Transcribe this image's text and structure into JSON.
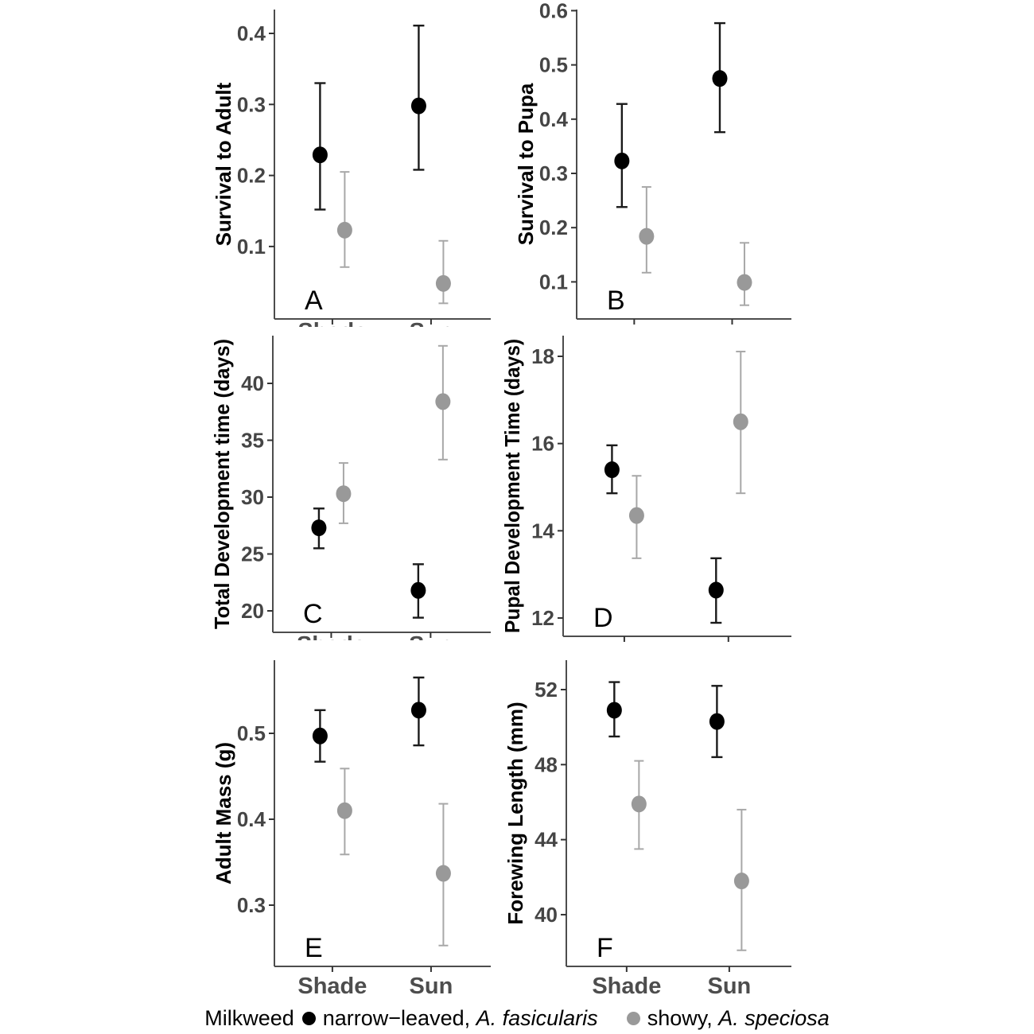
{
  "colors": {
    "black_series": "#000000",
    "black_errorbar": "#1a1a1a",
    "gray_series": "#999999",
    "gray_errorbar": "#a8a8a8",
    "axis": "#4d4d4d",
    "tick_label": "#454545",
    "panel_letter": "#000000"
  },
  "x_categories": [
    "Shade",
    "Sun"
  ],
  "legend": {
    "title": "Milkweed",
    "items": [
      {
        "marker_color": "#000000",
        "prefix": "narrow−leaved, ",
        "species": "A. fasicularis"
      },
      {
        "marker_color": "#999999",
        "prefix": "showy, ",
        "species": "A. speciosa"
      }
    ]
  },
  "chart_data": [
    {
      "id": "A",
      "letter": "A",
      "type": "scatter",
      "ylabel": "Survival to Adult",
      "categories": [
        "Shade",
        "Sun"
      ],
      "ytick_labels": [
        "0.1",
        "0.2",
        "0.3",
        "0.4"
      ],
      "ytick_values": [
        0.1,
        0.2,
        0.3,
        0.4
      ],
      "ylim": [
        0.0,
        0.43
      ],
      "x_label_style": "clipped",
      "series": [
        {
          "name": "narrow-leaved, A. fasicularis",
          "color": "black",
          "points": [
            {
              "x": "Shade",
              "y": 0.229,
              "lo": 0.152,
              "hi": 0.33
            },
            {
              "x": "Sun",
              "y": 0.298,
              "lo": 0.208,
              "hi": 0.411
            }
          ]
        },
        {
          "name": "showy, A. speciosa",
          "color": "gray",
          "points": [
            {
              "x": "Shade",
              "y": 0.123,
              "lo": 0.071,
              "hi": 0.205
            },
            {
              "x": "Sun",
              "y": 0.048,
              "lo": 0.02,
              "hi": 0.108
            }
          ]
        }
      ]
    },
    {
      "id": "B",
      "letter": "B",
      "type": "scatter",
      "ylabel": "Survival to Pupa",
      "categories": [
        "Shade",
        "Sun"
      ],
      "ytick_labels": [
        "0.1",
        "0.2",
        "0.3",
        "0.4",
        "0.5",
        "0.6"
      ],
      "ytick_values": [
        0.1,
        0.2,
        0.3,
        0.4,
        0.5,
        0.6
      ],
      "ylim": [
        0.01,
        0.62
      ],
      "x_label_style": "none",
      "series": [
        {
          "name": "narrow-leaved, A. fasicularis",
          "color": "black",
          "points": [
            {
              "x": "Shade",
              "y": 0.323,
              "lo": 0.238,
              "hi": 0.428
            },
            {
              "x": "Sun",
              "y": 0.475,
              "lo": 0.376,
              "hi": 0.577
            }
          ]
        },
        {
          "name": "showy, A. speciosa",
          "color": "gray",
          "points": [
            {
              "x": "Shade",
              "y": 0.184,
              "lo": 0.117,
              "hi": 0.275
            },
            {
              "x": "Sun",
              "y": 0.099,
              "lo": 0.057,
              "hi": 0.172
            }
          ]
        }
      ]
    },
    {
      "id": "C",
      "letter": "C",
      "type": "scatter",
      "ylabel": "Total Development time (days)",
      "categories": [
        "Shade",
        "Sun"
      ],
      "ytick_labels": [
        "20",
        "25",
        "30",
        "35",
        "40"
      ],
      "ytick_values": [
        20,
        25,
        30,
        35,
        40
      ],
      "ylim": [
        17.9,
        44.2
      ],
      "x_label_style": "clipped",
      "series": [
        {
          "name": "narrow-leaved, A. fasicularis",
          "color": "black",
          "points": [
            {
              "x": "Shade",
              "y": 27.3,
              "lo": 25.5,
              "hi": 29.0
            },
            {
              "x": "Sun",
              "y": 21.8,
              "lo": 19.4,
              "hi": 24.1
            }
          ]
        },
        {
          "name": "showy, A. speciosa",
          "color": "gray",
          "points": [
            {
              "x": "Shade",
              "y": 30.3,
              "lo": 27.7,
              "hi": 33.0
            },
            {
              "x": "Sun",
              "y": 38.4,
              "lo": 33.3,
              "hi": 43.3
            }
          ]
        }
      ]
    },
    {
      "id": "D",
      "letter": "D",
      "type": "scatter",
      "ylabel": "Pupal Development Time (days)",
      "categories": [
        "Shade",
        "Sun"
      ],
      "ytick_labels": [
        "12",
        "14",
        "16",
        "18"
      ],
      "ytick_values": [
        12,
        14,
        16,
        18
      ],
      "ylim": [
        11.6,
        18.5
      ],
      "x_label_style": "none",
      "series": [
        {
          "name": "narrow-leaved, A. fasicularis",
          "color": "black",
          "points": [
            {
              "x": "Shade",
              "y": 15.4,
              "lo": 14.86,
              "hi": 15.96
            },
            {
              "x": "Sun",
              "y": 12.64,
              "lo": 11.89,
              "hi": 13.37
            }
          ]
        },
        {
          "name": "showy, A. speciosa",
          "color": "gray",
          "points": [
            {
              "x": "Shade",
              "y": 14.35,
              "lo": 13.37,
              "hi": 15.26
            },
            {
              "x": "Sun",
              "y": 16.5,
              "lo": 14.86,
              "hi": 18.11
            }
          ]
        }
      ]
    },
    {
      "id": "E",
      "letter": "E",
      "type": "scatter",
      "ylabel": "Adult Mass (g)",
      "categories": [
        "Shade",
        "Sun"
      ],
      "ytick_labels": [
        "0.3",
        "0.4",
        "0.5"
      ],
      "ytick_values": [
        0.3,
        0.4,
        0.5
      ],
      "ylim": [
        0.23,
        0.59
      ],
      "x_label_style": "full",
      "series": [
        {
          "name": "narrow-leaved, A. fasicularis",
          "color": "black",
          "points": [
            {
              "x": "Shade",
              "y": 0.497,
              "lo": 0.467,
              "hi": 0.527
            },
            {
              "x": "Sun",
              "y": 0.527,
              "lo": 0.486,
              "hi": 0.565
            }
          ]
        },
        {
          "name": "showy, A. speciosa",
          "color": "gray",
          "points": [
            {
              "x": "Shade",
              "y": 0.41,
              "lo": 0.359,
              "hi": 0.459
            },
            {
              "x": "Sun",
              "y": 0.337,
              "lo": 0.253,
              "hi": 0.418
            }
          ]
        }
      ]
    },
    {
      "id": "F",
      "letter": "F",
      "type": "scatter",
      "ylabel": "Forewing Length (mm)",
      "categories": [
        "Shade",
        "Sun"
      ],
      "ytick_labels": [
        "40",
        "44",
        "48",
        "52"
      ],
      "ytick_values": [
        40,
        44,
        48,
        52
      ],
      "ylim": [
        37.3,
        53.6
      ],
      "x_label_style": "full",
      "series": [
        {
          "name": "narrow-leaved, A. fasicularis",
          "color": "black",
          "points": [
            {
              "x": "Shade",
              "y": 50.9,
              "lo": 49.5,
              "hi": 52.4
            },
            {
              "x": "Sun",
              "y": 50.3,
              "lo": 48.4,
              "hi": 52.2
            }
          ]
        },
        {
          "name": "showy, A. speciosa",
          "color": "gray",
          "points": [
            {
              "x": "Shade",
              "y": 45.9,
              "lo": 43.5,
              "hi": 48.2
            },
            {
              "x": "Sun",
              "y": 41.8,
              "lo": 38.1,
              "hi": 45.6
            }
          ]
        }
      ]
    }
  ]
}
